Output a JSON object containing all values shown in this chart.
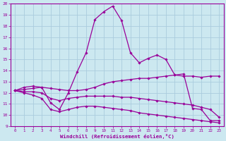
{
  "xlabel": "Windchill (Refroidissement éolien,°C)",
  "xlim": [
    -0.5,
    23.5
  ],
  "ylim": [
    9,
    20
  ],
  "xticks": [
    0,
    1,
    2,
    3,
    4,
    5,
    6,
    7,
    8,
    9,
    10,
    11,
    12,
    13,
    14,
    15,
    16,
    17,
    18,
    19,
    20,
    21,
    22,
    23
  ],
  "yticks": [
    9,
    10,
    11,
    12,
    13,
    14,
    15,
    16,
    17,
    18,
    19,
    20
  ],
  "background_color": "#cce8f0",
  "grid_color": "#aaccdd",
  "line_color": "#990099",
  "lines": [
    {
      "x": [
        0,
        1,
        2,
        3,
        4,
        5,
        6,
        7,
        8,
        9,
        10,
        11,
        12,
        13,
        14,
        15,
        16,
        17,
        18,
        19,
        20,
        21,
        22,
        23
      ],
      "y": [
        12.2,
        12.5,
        12.6,
        12.5,
        11.1,
        10.5,
        12.0,
        13.9,
        15.6,
        18.6,
        19.3,
        19.8,
        18.5,
        15.6,
        14.7,
        15.1,
        15.4,
        15.0,
        13.6,
        13.7,
        10.6,
        10.5,
        9.5,
        9.5
      ]
    },
    {
      "x": [
        0,
        1,
        2,
        3,
        4,
        5,
        6,
        7,
        8,
        9,
        10,
        11,
        12,
        13,
        14,
        15,
        16,
        17,
        18,
        19,
        20,
        21,
        22,
        23
      ],
      "y": [
        12.2,
        12.3,
        12.4,
        12.5,
        12.4,
        12.3,
        12.2,
        12.2,
        12.3,
        12.5,
        12.8,
        13.0,
        13.1,
        13.2,
        13.3,
        13.3,
        13.4,
        13.5,
        13.6,
        13.5,
        13.5,
        13.4,
        13.5,
        13.5
      ]
    },
    {
      "x": [
        0,
        1,
        2,
        3,
        4,
        5,
        6,
        7,
        8,
        9,
        10,
        11,
        12,
        13,
        14,
        15,
        16,
        17,
        18,
        19,
        20,
        21,
        22,
        23
      ],
      "y": [
        12.2,
        12.1,
        12.1,
        12.0,
        11.5,
        11.3,
        11.5,
        11.6,
        11.7,
        11.7,
        11.7,
        11.7,
        11.6,
        11.6,
        11.5,
        11.4,
        11.3,
        11.2,
        11.1,
        11.0,
        10.9,
        10.7,
        10.5,
        9.8
      ]
    },
    {
      "x": [
        0,
        1,
        2,
        3,
        4,
        5,
        6,
        7,
        8,
        9,
        10,
        11,
        12,
        13,
        14,
        15,
        16,
        17,
        18,
        19,
        20,
        21,
        22,
        23
      ],
      "y": [
        12.2,
        12.0,
        11.8,
        11.5,
        10.5,
        10.3,
        10.5,
        10.7,
        10.8,
        10.8,
        10.7,
        10.6,
        10.5,
        10.4,
        10.2,
        10.1,
        10.0,
        9.9,
        9.8,
        9.7,
        9.6,
        9.5,
        9.4,
        9.3
      ]
    }
  ]
}
